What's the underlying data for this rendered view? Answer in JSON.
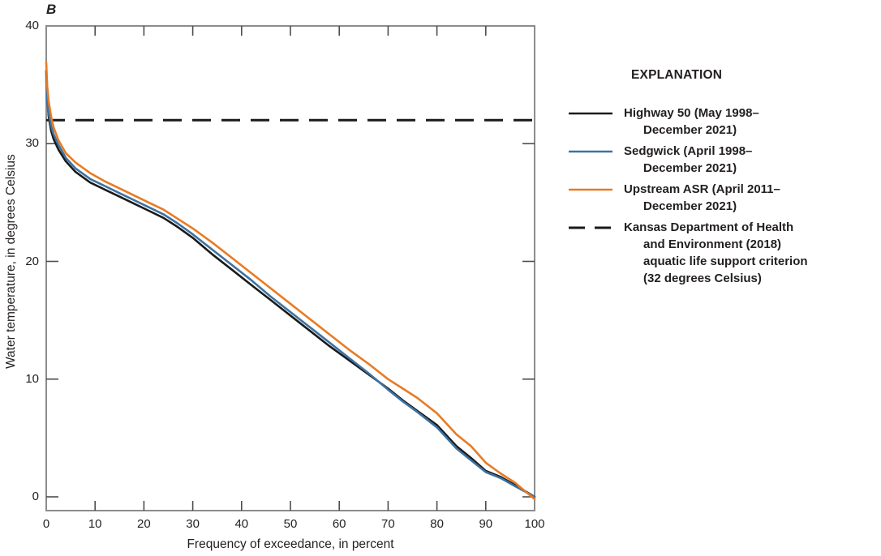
{
  "figure_label": "B",
  "explanation": {
    "title": "EXPLANATION",
    "items": [
      {
        "lines": [
          "Highway 50 (May 1998–",
          "December 2021)"
        ],
        "color": "#1a1a1a",
        "style": "solid"
      },
      {
        "lines": [
          "Sedgwick (April 1998–",
          "December 2021)"
        ],
        "color": "#3d72a2",
        "style": "solid"
      },
      {
        "lines": [
          "Upstream ASR (April 2011–",
          "December 2021)"
        ],
        "color": "#e87b24",
        "style": "solid"
      },
      {
        "lines": [
          "Kansas Department of Health",
          "and Environment (2018)",
          "aquatic life support criterion",
          "(32 degrees Celsius)"
        ],
        "color": "#1a1a1a",
        "style": "dashed"
      }
    ]
  },
  "chart_data": {
    "type": "line",
    "title": "",
    "xlabel": "Frequency of exceedance, in percent",
    "ylabel": "Water temperature, in degrees Celsius",
    "xlim": [
      0,
      100
    ],
    "ylim": [
      0,
      40
    ],
    "xticks": [
      0,
      10,
      20,
      30,
      40,
      50,
      60,
      70,
      80,
      90,
      100
    ],
    "yticks": [
      0,
      10,
      20,
      30,
      40
    ],
    "grid": false,
    "legend_position": "right",
    "axis_color": "#8c8c8c",
    "tick_color": "#4d4d4d",
    "criterion_line": {
      "value": 32,
      "style": "dashed",
      "color": "#1a1a1a",
      "label": "Kansas Department of Health and Environment (2018) aquatic life support criterion (32 degrees Celsius)"
    },
    "series": [
      {
        "name": "Highway 50 (May 1998–December 2021)",
        "color": "#1a1a1a",
        "points": [
          [
            0,
            36.2
          ],
          [
            0.2,
            33.8
          ],
          [
            0.5,
            32.3
          ],
          [
            1,
            31.1
          ],
          [
            1.5,
            30.4
          ],
          [
            2.5,
            29.5
          ],
          [
            4,
            28.5
          ],
          [
            6,
            27.6
          ],
          [
            9,
            26.7
          ],
          [
            12,
            26.1
          ],
          [
            15,
            25.5
          ],
          [
            18,
            24.9
          ],
          [
            21,
            24.3
          ],
          [
            24,
            23.7
          ],
          [
            27,
            22.9
          ],
          [
            30,
            22.0
          ],
          [
            34,
            20.6
          ],
          [
            38,
            19.3
          ],
          [
            42,
            18.0
          ],
          [
            46,
            16.7
          ],
          [
            50,
            15.4
          ],
          [
            54,
            14.1
          ],
          [
            58,
            12.8
          ],
          [
            62,
            11.6
          ],
          [
            66,
            10.4
          ],
          [
            70,
            9.2
          ],
          [
            73,
            8.2
          ],
          [
            76,
            7.3
          ],
          [
            80,
            6.1
          ],
          [
            84,
            4.3
          ],
          [
            87,
            3.3
          ],
          [
            90,
            2.2
          ],
          [
            93,
            1.7
          ],
          [
            96,
            1.0
          ],
          [
            100,
            0
          ]
        ]
      },
      {
        "name": "Sedgwick (April 1998–December 2021)",
        "color": "#3d72a2",
        "points": [
          [
            0,
            35.5
          ],
          [
            0.2,
            33.4
          ],
          [
            0.5,
            32.6
          ],
          [
            1,
            31.5
          ],
          [
            1.5,
            30.8
          ],
          [
            2.5,
            29.9
          ],
          [
            4,
            28.8
          ],
          [
            6,
            27.9
          ],
          [
            9,
            27.0
          ],
          [
            12,
            26.4
          ],
          [
            15,
            25.8
          ],
          [
            18,
            25.2
          ],
          [
            21,
            24.6
          ],
          [
            24,
            24.0
          ],
          [
            27,
            23.2
          ],
          [
            30,
            22.3
          ],
          [
            34,
            21.0
          ],
          [
            38,
            19.7
          ],
          [
            42,
            18.4
          ],
          [
            46,
            17.0
          ],
          [
            50,
            15.7
          ],
          [
            54,
            14.4
          ],
          [
            58,
            13.1
          ],
          [
            62,
            11.8
          ],
          [
            66,
            10.5
          ],
          [
            70,
            9.1
          ],
          [
            73,
            8.1
          ],
          [
            76,
            7.2
          ],
          [
            80,
            5.9
          ],
          [
            84,
            4.1
          ],
          [
            87,
            3.1
          ],
          [
            90,
            2.1
          ],
          [
            93,
            1.6
          ],
          [
            96,
            0.9
          ],
          [
            100,
            0
          ]
        ]
      },
      {
        "name": "Upstream ASR (April 2011–December 2021)",
        "color": "#e87b24",
        "points": [
          [
            0,
            36.9
          ],
          [
            0.2,
            34.9
          ],
          [
            0.5,
            33.6
          ],
          [
            1,
            32.3
          ],
          [
            1.5,
            31.4
          ],
          [
            2.5,
            30.3
          ],
          [
            4,
            29.2
          ],
          [
            6,
            28.4
          ],
          [
            9,
            27.5
          ],
          [
            12,
            26.8
          ],
          [
            15,
            26.2
          ],
          [
            18,
            25.6
          ],
          [
            21,
            25.0
          ],
          [
            24,
            24.4
          ],
          [
            27,
            23.6
          ],
          [
            30,
            22.8
          ],
          [
            34,
            21.6
          ],
          [
            38,
            20.3
          ],
          [
            42,
            19.0
          ],
          [
            46,
            17.7
          ],
          [
            50,
            16.4
          ],
          [
            54,
            15.1
          ],
          [
            58,
            13.8
          ],
          [
            62,
            12.5
          ],
          [
            66,
            11.3
          ],
          [
            70,
            10.0
          ],
          [
            73,
            9.2
          ],
          [
            76,
            8.4
          ],
          [
            80,
            7.1
          ],
          [
            84,
            5.3
          ],
          [
            87,
            4.3
          ],
          [
            90,
            2.9
          ],
          [
            93,
            2.0
          ],
          [
            96,
            1.2
          ],
          [
            100,
            -0.2
          ]
        ]
      }
    ]
  }
}
